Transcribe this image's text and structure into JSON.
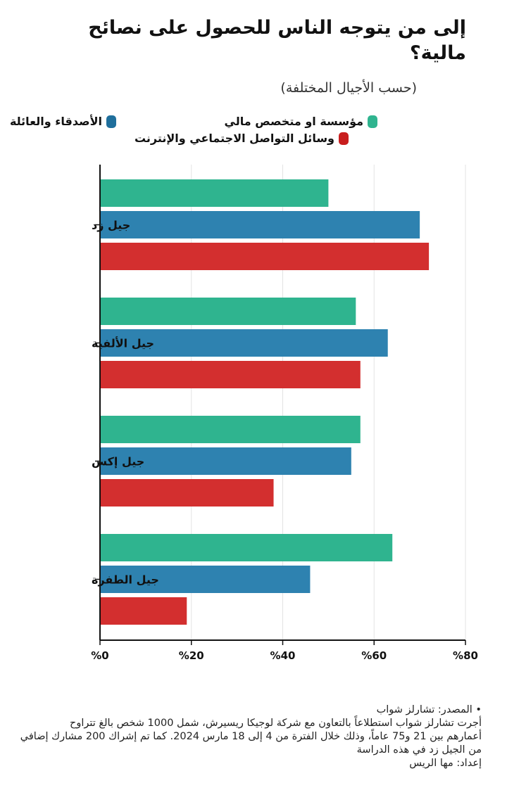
{
  "header": {
    "title": "إلى من يتوجه الناس للحصول على نصائح مالية؟",
    "subtitle": "(حسب الأجيال المختلفة)"
  },
  "legend": [
    {
      "label": "مؤسسة او متخصص مالي",
      "color": "#2fb48f"
    },
    {
      "label": "الأصدقاء والعائلة",
      "color": "#2e82b0"
    },
    {
      "label": "وسائل التواصل الاجتماعي والإنترنت",
      "color": "#d32f2f"
    }
  ],
  "footer": {
    "source": "• المصدر: تشارلز شواب",
    "note_line1": "أجرت تشارلز شواب استطلاعاً بالتعاون مع شركة لوجيكا ريسيرش، شمل 1000 شخص بالغ تتراوح",
    "note_line2": "أعمارهم بين 21 و75 عاماً، وذلك خلال الفترة من 4 إلى 18 مارس 2024. كما تم إشراك 200 مشارك إضافي",
    "note_line3": "من الجيل زد في هذه الدراسة",
    "credit": "إعداد: مها الريس"
  },
  "chart_data": {
    "type": "bar",
    "orientation": "horizontal",
    "title": "إلى من يتوجه الناس للحصول على نصائح مالية؟",
    "subtitle": "(حسب الأجيال المختلفة)",
    "categories": [
      "جيل زد",
      "جيل الألفية",
      "جيل إكس",
      "جيل الطفرة"
    ],
    "series": [
      {
        "name": "مؤسسة او متخصص مالي",
        "color": "#2fb48f",
        "values": [
          50,
          56,
          57,
          64
        ]
      },
      {
        "name": "الأصدقاء والعائلة",
        "color": "#2e82b0",
        "values": [
          70,
          63,
          55,
          46
        ]
      },
      {
        "name": "وسائل التواصل الاجتماعي والإنترنت",
        "color": "#d32f2f",
        "values": [
          72,
          57,
          38,
          19
        ]
      }
    ],
    "xlim": [
      0,
      80
    ],
    "xticks": [
      0,
      20,
      40,
      60,
      80
    ],
    "xtick_labels": [
      "%0",
      "%20",
      "%40",
      "%60",
      "%80"
    ],
    "grid": true,
    "legend_position": "top"
  }
}
